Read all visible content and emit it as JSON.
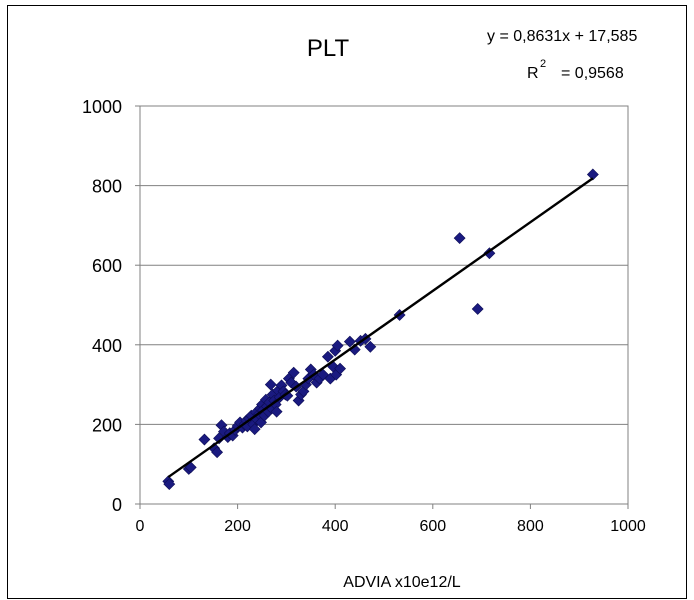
{
  "chart_data": {
    "type": "scatter",
    "title": "PLT",
    "xlabel": "ADVIA x10e12/L",
    "ylabel": "",
    "xlim": [
      0,
      1000
    ],
    "ylim": [
      0,
      1000
    ],
    "x_ticks": [
      "0",
      "200",
      "400",
      "600",
      "800",
      "1000"
    ],
    "y_ticks": [
      "0",
      "200",
      "400",
      "600",
      "800",
      "1000"
    ],
    "grid": "horizontal",
    "marker_color": "#1a1a80",
    "trendline": {
      "slope": 0.8631,
      "intercept": 17.585,
      "x_range": [
        58,
        928
      ],
      "equation": "y = 0,8631x + 17,585",
      "r2_label": "R",
      "r2_sup": "2",
      "r2_value": "= 0,9568"
    },
    "points": [
      [
        58,
        57
      ],
      [
        60,
        50
      ],
      [
        100,
        88
      ],
      [
        104,
        92
      ],
      [
        132,
        162
      ],
      [
        152,
        140
      ],
      [
        158,
        130
      ],
      [
        162,
        165
      ],
      [
        167,
        198
      ],
      [
        172,
        182
      ],
      [
        180,
        168
      ],
      [
        184,
        178
      ],
      [
        190,
        172
      ],
      [
        195,
        186
      ],
      [
        200,
        196
      ],
      [
        205,
        205
      ],
      [
        210,
        192
      ],
      [
        214,
        200
      ],
      [
        218,
        210
      ],
      [
        220,
        195
      ],
      [
        224,
        215
      ],
      [
        228,
        222
      ],
      [
        232,
        200
      ],
      [
        235,
        188
      ],
      [
        238,
        230
      ],
      [
        240,
        212
      ],
      [
        244,
        226
      ],
      [
        246,
        240
      ],
      [
        248,
        205
      ],
      [
        250,
        250
      ],
      [
        252,
        236
      ],
      [
        255,
        222
      ],
      [
        258,
        262
      ],
      [
        260,
        245
      ],
      [
        263,
        232
      ],
      [
        265,
        255
      ],
      [
        268,
        300
      ],
      [
        270,
        240
      ],
      [
        272,
        275
      ],
      [
        275,
        260
      ],
      [
        278,
        250
      ],
      [
        280,
        232
      ],
      [
        283,
        285
      ],
      [
        286,
        268
      ],
      [
        290,
        298
      ],
      [
        294,
        283
      ],
      [
        298,
        275
      ],
      [
        302,
        272
      ],
      [
        305,
        315
      ],
      [
        310,
        305
      ],
      [
        315,
        330
      ],
      [
        320,
        295
      ],
      [
        325,
        260
      ],
      [
        330,
        275
      ],
      [
        335,
        283
      ],
      [
        340,
        300
      ],
      [
        345,
        315
      ],
      [
        350,
        338
      ],
      [
        356,
        325
      ],
      [
        362,
        305
      ],
      [
        368,
        315
      ],
      [
        375,
        325
      ],
      [
        385,
        370
      ],
      [
        390,
        315
      ],
      [
        396,
        345
      ],
      [
        400,
        385
      ],
      [
        402,
        325
      ],
      [
        405,
        398
      ],
      [
        410,
        340
      ],
      [
        430,
        408
      ],
      [
        440,
        388
      ],
      [
        452,
        410
      ],
      [
        462,
        415
      ],
      [
        472,
        395
      ],
      [
        532,
        475
      ],
      [
        655,
        668
      ],
      [
        692,
        490
      ],
      [
        716,
        630
      ],
      [
        928,
        828
      ]
    ]
  }
}
